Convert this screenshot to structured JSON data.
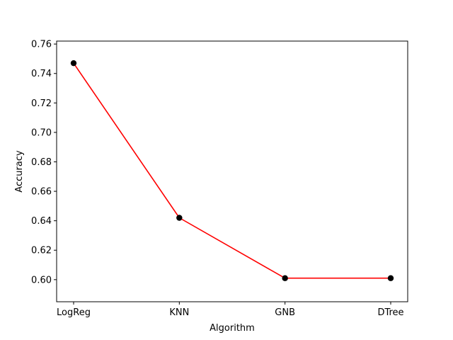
{
  "chart_data": {
    "type": "line",
    "categories": [
      "LogReg",
      "KNN",
      "GNB",
      "DTree"
    ],
    "values": [
      0.747,
      0.642,
      0.601,
      0.601
    ],
    "title": "",
    "xlabel": "Algorithm",
    "ylabel": "Accuracy",
    "ylim": [
      0.585,
      0.762
    ],
    "yticks": [
      "0.60",
      "0.62",
      "0.64",
      "0.66",
      "0.68",
      "0.70",
      "0.72",
      "0.74",
      "0.76"
    ],
    "grid": false,
    "line_color": "#ff0000",
    "marker_color": "#000000"
  }
}
